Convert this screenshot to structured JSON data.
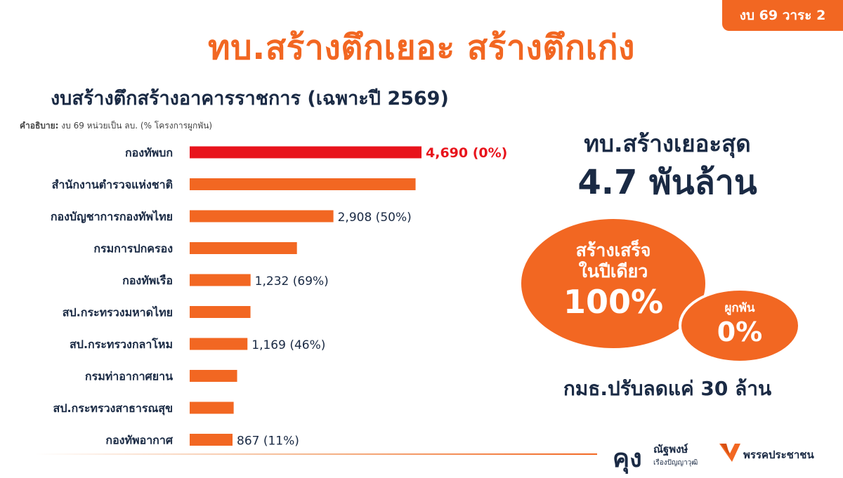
{
  "tag": "งบ 69 วาระ 2",
  "main_title": "ทบ.สร้างตึกเยอะ สร้างตึกเก่ง",
  "chart_title": "งบสร้างตึกสร้างอาคารราชการ (เฉพาะปี 2569)",
  "note_label": "คำอธิบาย:",
  "note_text": " งบ 69 หน่วยเป็น ลบ. (% โครงการผูกพัน)",
  "colors": {
    "accent": "#F26722",
    "highlight": "#E8141C",
    "dark": "#1a2a44"
  },
  "chart_data": {
    "type": "bar",
    "orientation": "horizontal",
    "categories": [
      "กองทัพบก",
      "สำนักงานตำรวจแห่งชาติ",
      "กองบัญชาการกองทัพไทย",
      "กรมการปกครอง",
      "กองทัพเรือ",
      "สป.กระทรวงมหาดไทย",
      "สป.กระทรวงกลาโหม",
      "กรมท่าอากาศยาน",
      "สป.กระทรวงสาธารณสุข",
      "กองทัพอากาศ"
    ],
    "values": [
      4690,
      4570,
      2908,
      2170,
      1232,
      1230,
      1169,
      960,
      890,
      867
    ],
    "data_labels": [
      "4,690 (0%)",
      "",
      "2,908 (50%)",
      "",
      "1,232 (69%)",
      "",
      "1,169 (46%)",
      "",
      "",
      "867 (11%)"
    ],
    "highlight_index": 0
  },
  "right_panel": {
    "title": "ทบ.สร้างเยอะสุด",
    "big": "4.7 พันล้าน",
    "blob1_line1": "สร้างเสร็จ",
    "blob1_line2": "ในปีเดียว",
    "blob1_value": "100%",
    "blob2_line1": "ผูกพัน",
    "blob2_value": "0%",
    "footer": "กมธ.ปรับลดแค่ 30 ล้าน"
  },
  "brand": {
    "kung": "คุง",
    "name": "ณัฐพงษ์",
    "surname": "เรืองปัญญาวุฒิ",
    "party": "พรรคประชาชน",
    "party_logo": "party-logo-icon"
  }
}
